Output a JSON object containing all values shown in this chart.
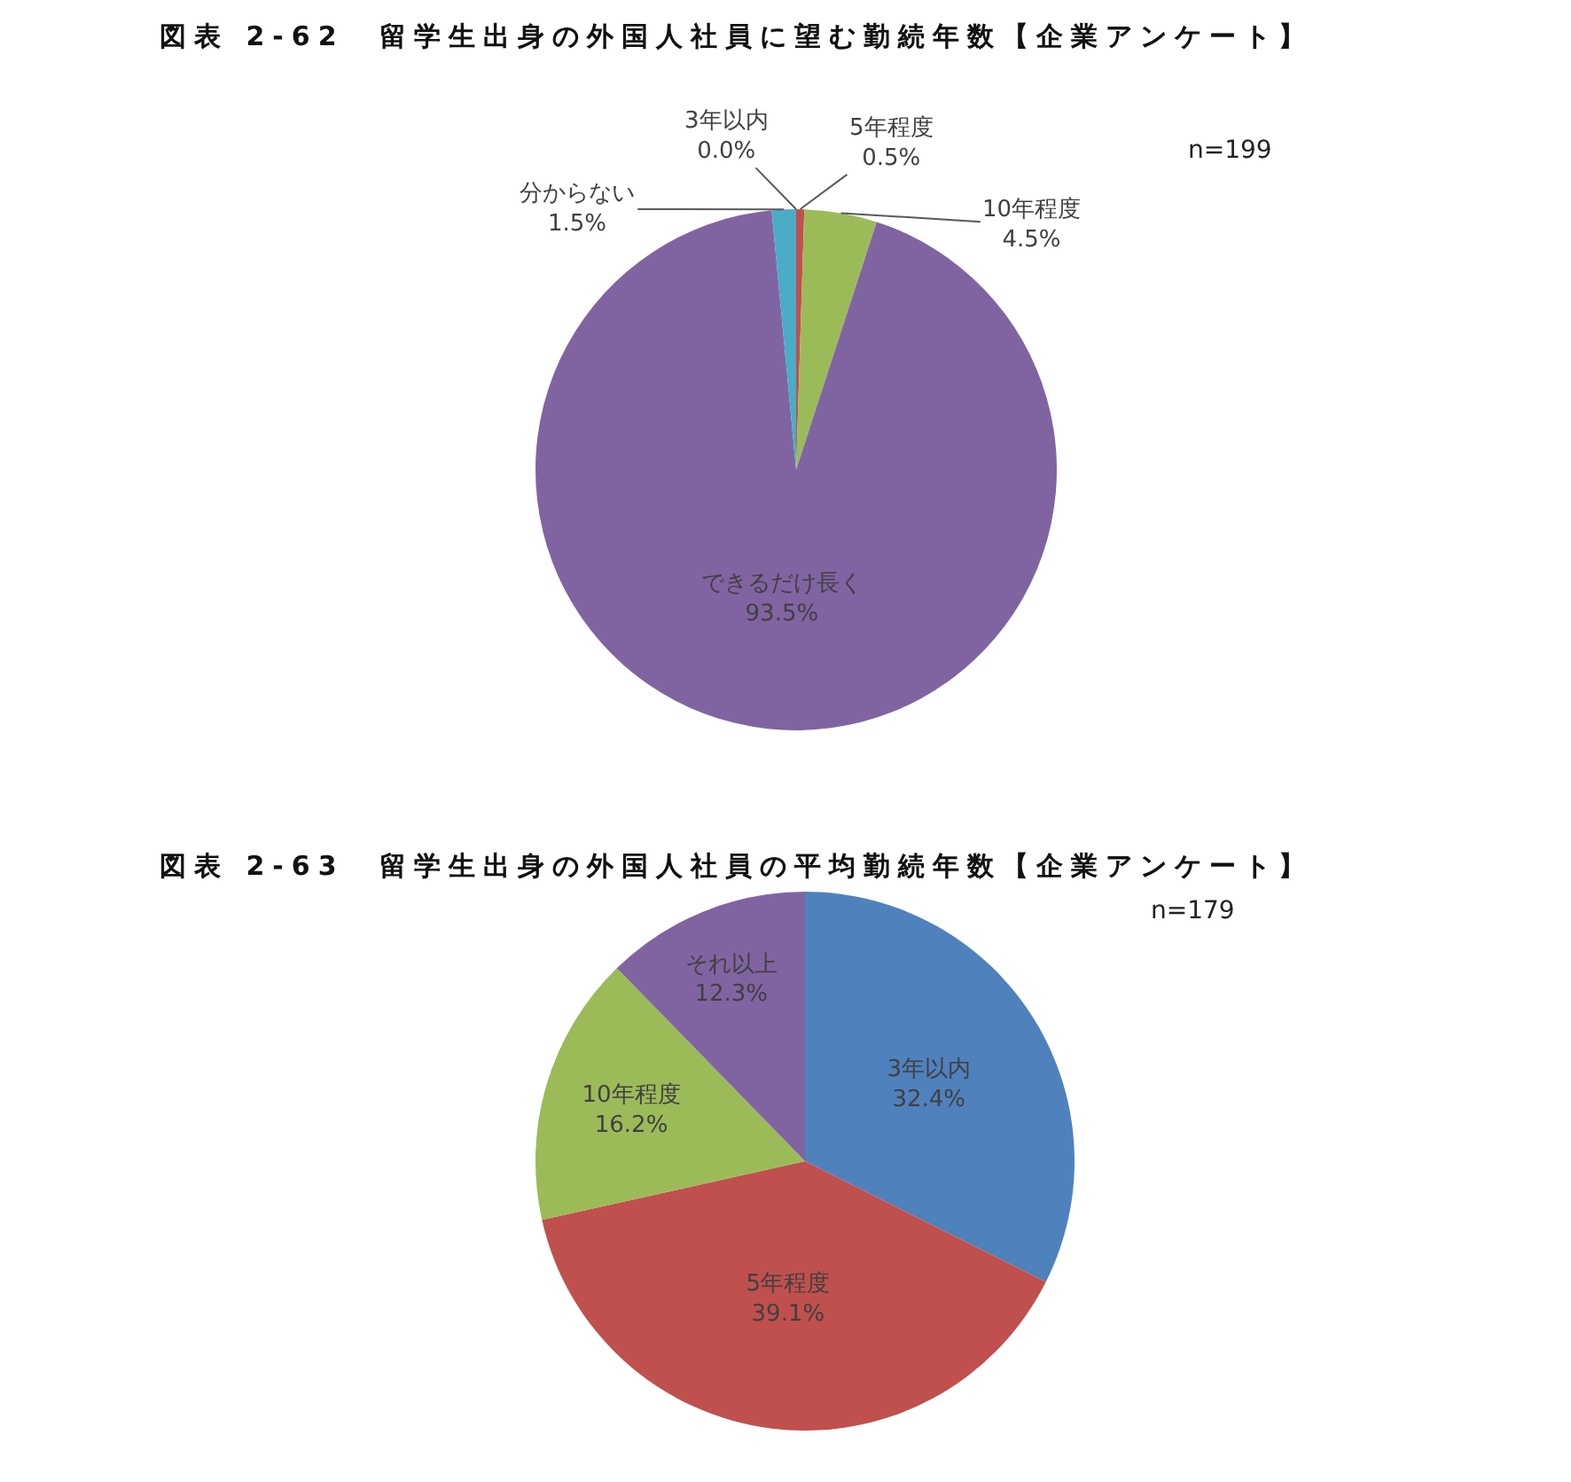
{
  "chart_data": [
    {
      "type": "pie",
      "title": "図表 2-62　留学生出身の外国人社員に望む勤続年数【企業アンケート】",
      "categories": [
        "3年以内",
        "5年程度",
        "10年程度",
        "できるだけ長く",
        "分からない"
      ],
      "values": [
        0.0,
        0.5,
        4.5,
        93.5,
        1.5
      ],
      "colors": [
        "#4f81bd",
        "#c0504d",
        "#9bbb59",
        "#8064a2",
        "#4bacc6"
      ],
      "value_labels": [
        "0.0%",
        "0.5%",
        "4.5%",
        "93.5%",
        "1.5%"
      ],
      "annotations": [
        "n=199"
      ]
    },
    {
      "type": "pie",
      "title": "図表 2-63　留学生出身の外国人社員の平均勤続年数【企業アンケート】",
      "categories": [
        "3年以内",
        "5年程度",
        "10年程度",
        "それ以上"
      ],
      "values": [
        32.4,
        39.1,
        16.2,
        12.3
      ],
      "colors": [
        "#4f81bd",
        "#c0504d",
        "#9bbb59",
        "#8064a2"
      ],
      "value_labels": [
        "32.4%",
        "39.1%",
        "16.2%",
        "12.3%"
      ],
      "annotations": [
        "n=179"
      ]
    }
  ]
}
